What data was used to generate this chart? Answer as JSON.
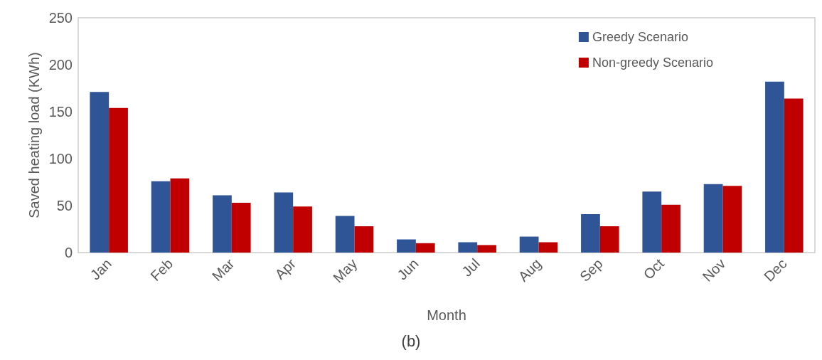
{
  "chart_data": {
    "type": "bar",
    "xlabel": "Month",
    "ylabel": "Saved heating load (KWh)",
    "annotations": [
      "(b)"
    ],
    "categories": [
      "Jan",
      "Feb",
      "Mar",
      "Apr",
      "May",
      "Jun",
      "Jul",
      "Aug",
      "Sep",
      "Oct",
      "Nov",
      "Dec"
    ],
    "series": [
      {
        "name": "Greedy Scenario",
        "color": "#2f5597",
        "values": [
          171,
          76,
          61,
          64,
          39,
          14,
          11,
          17,
          41,
          65,
          73,
          182
        ]
      },
      {
        "name": "Non-greedy Scenario",
        "color": "#c00000",
        "values": [
          154,
          79,
          53,
          49,
          28,
          10,
          8,
          11,
          28,
          51,
          71,
          164
        ]
      }
    ],
    "ylim": [
      0,
      250
    ],
    "yticks": [
      0,
      50,
      100,
      150,
      200,
      250
    ],
    "grid": false,
    "legend": "top right"
  }
}
